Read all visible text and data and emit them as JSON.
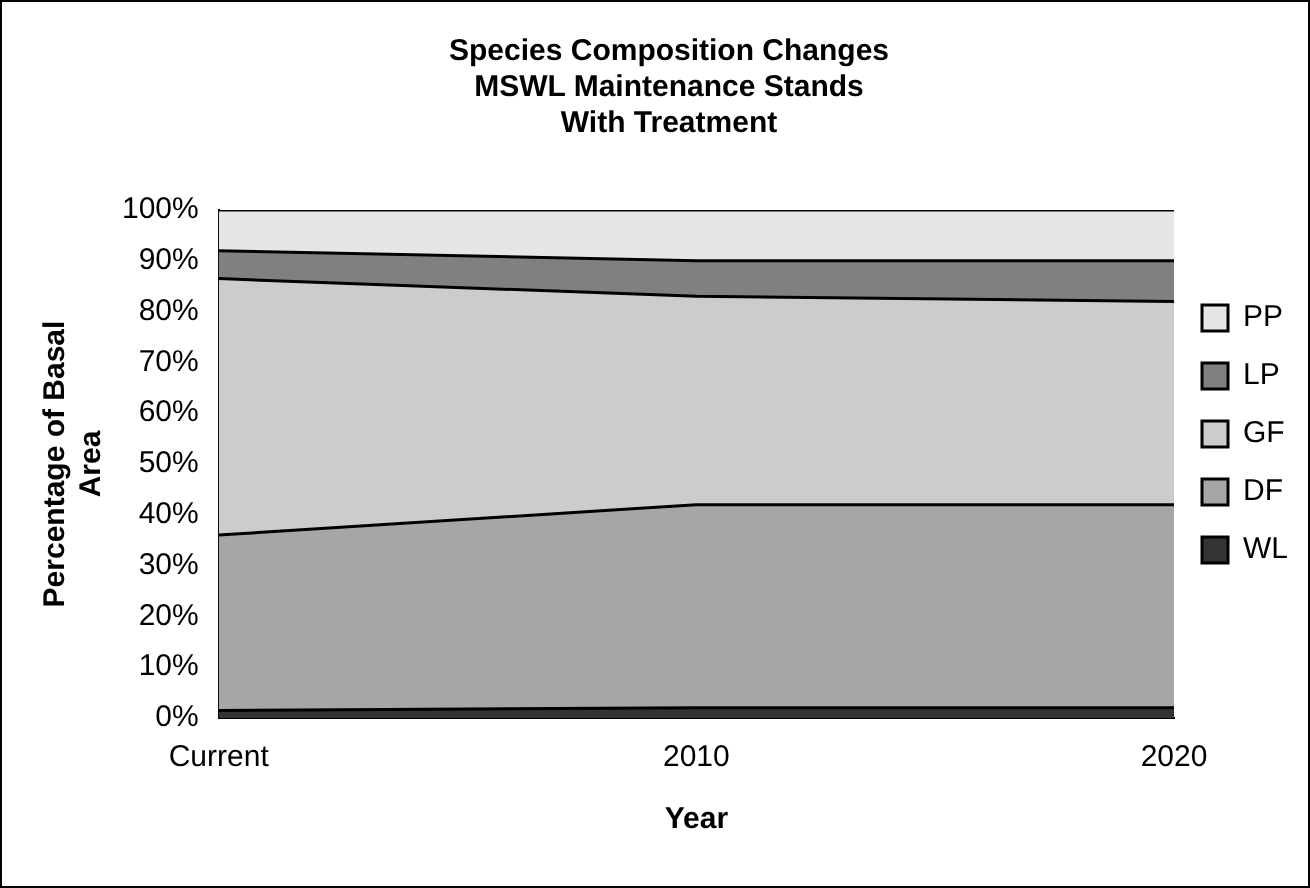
{
  "chart_data": {
    "type": "area",
    "title": "Species Composition Changes\nMSWL Maintenance Stands\nWith Treatment",
    "xlabel": "Year",
    "ylabel": "Percentage of Basal Area",
    "categories": [
      "Current",
      "2010",
      "2020"
    ],
    "stacked": true,
    "ylim": [
      0,
      100
    ],
    "yticks": [
      {
        "value": 0,
        "label": "0%"
      },
      {
        "value": 10,
        "label": "10%"
      },
      {
        "value": 20,
        "label": "20%"
      },
      {
        "value": 30,
        "label": "30%"
      },
      {
        "value": 40,
        "label": "40%"
      },
      {
        "value": 50,
        "label": "50%"
      },
      {
        "value": 60,
        "label": "60%"
      },
      {
        "value": 70,
        "label": "70%"
      },
      {
        "value": 80,
        "label": "80%"
      },
      {
        "value": 90,
        "label": "90%"
      },
      {
        "value": 100,
        "label": "100%"
      }
    ],
    "grid": false,
    "legend": "right",
    "series": [
      {
        "name": "WL",
        "color": "#333333",
        "values": [
          1.5,
          2,
          2
        ]
      },
      {
        "name": "DF",
        "color": "#a6a6a6",
        "values": [
          34.5,
          40,
          40
        ]
      },
      {
        "name": "GF",
        "color": "#cccccc",
        "values": [
          50.5,
          41,
          40
        ]
      },
      {
        "name": "LP",
        "color": "#808080",
        "values": [
          5.5,
          7,
          8
        ]
      },
      {
        "name": "PP",
        "color": "#e6e6e6",
        "values": [
          8,
          10,
          10
        ]
      }
    ]
  }
}
